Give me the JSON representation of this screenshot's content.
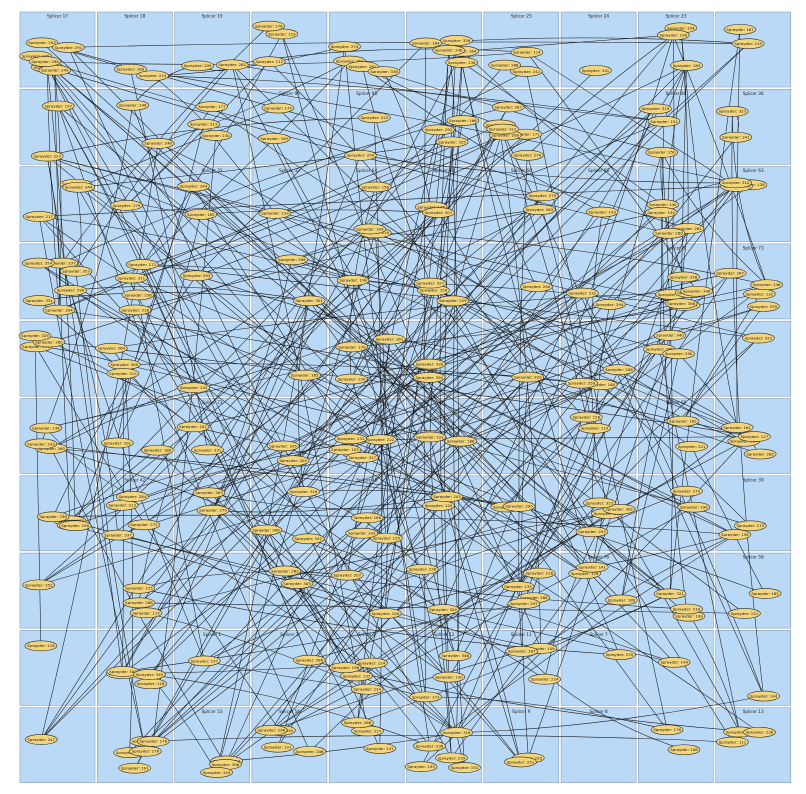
{
  "clusters": [
    {
      "label": "Splicer 17"
    },
    {
      "label": "Splicer 18"
    },
    {
      "label": "Splicer 19"
    },
    {
      "label": ""
    },
    {
      "label": ""
    },
    {
      "label": ""
    },
    {
      "label": "Splicer 25"
    },
    {
      "label": "Splicer 24"
    },
    {
      "label": "Splicer 23"
    },
    {
      "label": ""
    },
    {
      "label": ""
    },
    {
      "label": ""
    },
    {
      "label": ""
    },
    {
      "label": "Splicer 96"
    },
    {
      "label": "Splicer 95"
    },
    {
      "label": ""
    },
    {
      "label": ""
    },
    {
      "label": ""
    },
    {
      "label": "Splicer 88"
    },
    {
      "label": "Splicer 36"
    },
    {
      "label": ""
    },
    {
      "label": ""
    },
    {
      "label": "Splicer 31"
    },
    {
      "label": "Splicer 32"
    },
    {
      "label": "Splicer 64"
    },
    {
      "label": "Splicer 65"
    },
    {
      "label": "Splicer 66"
    },
    {
      "label": "Splicer 68"
    },
    {
      "label": ""
    },
    {
      "label": "Splicer 63"
    },
    {
      "label": ""
    },
    {
      "label": ""
    },
    {
      "label": ""
    },
    {
      "label": ""
    },
    {
      "label": ""
    },
    {
      "label": ""
    },
    {
      "label": ""
    },
    {
      "label": ""
    },
    {
      "label": "Splicer 8"
    },
    {
      "label": "Splicer 73"
    },
    {
      "label": ""
    },
    {
      "label": ""
    },
    {
      "label": ""
    },
    {
      "label": ""
    },
    {
      "label": ""
    },
    {
      "label": ""
    },
    {
      "label": ""
    },
    {
      "label": ""
    },
    {
      "label": ""
    },
    {
      "label": ""
    },
    {
      "label": ""
    },
    {
      "label": ""
    },
    {
      "label": "Splicer 73"
    },
    {
      "label": ""
    },
    {
      "label": ""
    },
    {
      "label": ""
    },
    {
      "label": ""
    },
    {
      "label": ""
    },
    {
      "label": "Splicer 69"
    },
    {
      "label": ""
    },
    {
      "label": ""
    },
    {
      "label": "Splicer 42"
    },
    {
      "label": ""
    },
    {
      "label": ""
    },
    {
      "label": "Splicer 45"
    },
    {
      "label": ""
    },
    {
      "label": ""
    },
    {
      "label": ""
    },
    {
      "label": ""
    },
    {
      "label": "Splicer 39"
    },
    {
      "label": ""
    },
    {
      "label": ""
    },
    {
      "label": ""
    },
    {
      "label": ""
    },
    {
      "label": ""
    },
    {
      "label": ""
    },
    {
      "label": ""
    },
    {
      "label": "Splicer 76"
    },
    {
      "label": ""
    },
    {
      "label": "Splicer 58"
    },
    {
      "label": ""
    },
    {
      "label": ""
    },
    {
      "label": "Splicer 1"
    },
    {
      "label": "Splicer 2"
    },
    {
      "label": "Splicer 3"
    },
    {
      "label": "Splicer 12"
    },
    {
      "label": "Splicer 11"
    },
    {
      "label": "Splicer 7"
    },
    {
      "label": ""
    },
    {
      "label": ""
    },
    {
      "label": ""
    },
    {
      "label": ""
    },
    {
      "label": "Splicer 53"
    },
    {
      "label": "Splicer 54"
    },
    {
      "label": ""
    },
    {
      "label": ""
    },
    {
      "label": "Splicer 9"
    },
    {
      "label": "Splicer 8"
    },
    {
      "label": ""
    },
    {
      "label": "Splicer 13"
    }
  ],
  "nodes": [
    {
      "label": "Sprayder: 107"
    },
    {
      "label": "Sprayder: 108"
    },
    {
      "label": "Sprayder: 109"
    },
    {
      "label": "Sprayder: 110"
    },
    {
      "label": "Sprayder: 111"
    },
    {
      "label": "Sprayder: 112"
    },
    {
      "label": "Sprayder: 113"
    },
    {
      "label": "Sprayder: 114"
    },
    {
      "label": "Sprayder: 115"
    },
    {
      "label": "Sprayder: 116"
    },
    {
      "label": "Sprayder: 117"
    },
    {
      "label": "Sprayder: 118"
    },
    {
      "label": "Sprayder: 119"
    },
    {
      "label": "Sprayder: 120"
    },
    {
      "label": "Sprayder: 121"
    },
    {
      "label": "Sprayder: 122"
    },
    {
      "label": "Sprayder: 123"
    },
    {
      "label": "Sprayder: 124"
    },
    {
      "label": "Sprayder: 125"
    },
    {
      "label": "Sprayder: 126"
    },
    {
      "label": "Sprayder: 127"
    },
    {
      "label": "Sprayder: 128"
    },
    {
      "label": "Sprayder: 129"
    },
    {
      "label": "Sprayder: 130"
    },
    {
      "label": "Sprayder: 131"
    },
    {
      "label": "Sprayder: 132"
    },
    {
      "label": "Sprayder: 133"
    },
    {
      "label": "Sprayder: 134"
    },
    {
      "label": "Sprayder: 135"
    },
    {
      "label": "Sprayder: 136"
    },
    {
      "label": "Sprayder: 137"
    },
    {
      "label": "Sprayder: 138"
    },
    {
      "label": "Sprayder: 139"
    },
    {
      "label": "Sprayder: 140"
    },
    {
      "label": "Sprayder: 141"
    },
    {
      "label": "Sprayder: 142"
    },
    {
      "label": "Sprayder: 143"
    },
    {
      "label": "Sprayder: 144"
    },
    {
      "label": "Sprayder: 145"
    },
    {
      "label": "Sprayder: 146"
    },
    {
      "label": "Sprayder: 147"
    },
    {
      "label": "Sprayder: 148"
    },
    {
      "label": "Sprayder: 149"
    },
    {
      "label": "Sprayder: 150"
    },
    {
      "label": "Sprayder: 151"
    },
    {
      "label": "Sprayder: 152"
    },
    {
      "label": "Sprayder: 153"
    },
    {
      "label": "Sprayder: 154"
    },
    {
      "label": "Sprayder: 155"
    },
    {
      "label": "Sprayder: 156"
    },
    {
      "label": "Sprayder: 157"
    },
    {
      "label": "Sprayder: 158"
    },
    {
      "label": "Sprayder: 159"
    },
    {
      "label": "Sprayder: 160"
    },
    {
      "label": "Sprayder: 161"
    },
    {
      "label": "Sprayder: 162"
    },
    {
      "label": "Sprayder: 163"
    },
    {
      "label": "Sprayder: 164"
    },
    {
      "label": "Sprayder: 165"
    },
    {
      "label": "Sprayder: 166"
    },
    {
      "label": "Sprayder: 167"
    },
    {
      "label": "Sprayder: 168"
    },
    {
      "label": "Sprayder: 169"
    },
    {
      "label": "Sprayder: 170"
    },
    {
      "label": "Sprayder: 171"
    },
    {
      "label": "Sprayder: 172"
    },
    {
      "label": "Sprayder: 173"
    },
    {
      "label": "Sprayder: 174"
    },
    {
      "label": "Sprayder: 175"
    },
    {
      "label": "Sprayder: 176"
    },
    {
      "label": "Sprayder: 177"
    },
    {
      "label": "Sprayder: 178"
    },
    {
      "label": "Sprayder: 179"
    },
    {
      "label": "Sprayder: 180"
    },
    {
      "label": "Sprayder: 181"
    },
    {
      "label": "Sprayder: 182"
    },
    {
      "label": "Sprayder: 183"
    },
    {
      "label": "Sprayder: 184"
    },
    {
      "label": "Sprayder: 185"
    },
    {
      "label": "Sprayder: 186"
    },
    {
      "label": "Sprayder: 187"
    },
    {
      "label": "Sprayder: 188"
    },
    {
      "label": "Sprayder: 189"
    },
    {
      "label": "Sprayder: 190"
    },
    {
      "label": "Sprayder: 191"
    },
    {
      "label": "Sprayder: 192"
    },
    {
      "label": "Sprayder: 193"
    },
    {
      "label": "Sprayder: 194"
    },
    {
      "label": "Sprayder: 195"
    },
    {
      "label": "Sprayder: 196"
    },
    {
      "label": "Sprayder: 197"
    },
    {
      "label": "Sprayder: 198"
    },
    {
      "label": "Sprayder: 199"
    },
    {
      "label": "Sprayder: 200"
    },
    {
      "label": "Sprayder: 201"
    },
    {
      "label": "Sprayder: 202"
    },
    {
      "label": "Sprayder: 203"
    },
    {
      "label": "Sprayder: 204"
    },
    {
      "label": "Sprayder: 205"
    },
    {
      "label": "Sprayder: 206"
    },
    {
      "label": "Sprayder: 207"
    },
    {
      "label": "Sprayder: 208"
    },
    {
      "label": "Sprayder: 209"
    },
    {
      "label": "Sprayder: 210"
    },
    {
      "label": "Sprayder: 211"
    },
    {
      "label": "Sprayder: 212"
    },
    {
      "label": "Sprayder: 213"
    },
    {
      "label": "Sprayder: 214"
    },
    {
      "label": "Sprayder: 215"
    },
    {
      "label": "Sprayder: 216"
    },
    {
      "label": "Sprayder: 217"
    },
    {
      "label": "Sprayder: 218"
    },
    {
      "label": "Sprayder: 219"
    },
    {
      "label": "Sprayder: 220"
    },
    {
      "label": "Sprayder: 221"
    },
    {
      "label": "Sprayder: 222"
    },
    {
      "label": "Sprayder: 223"
    },
    {
      "label": "Sprayder: 224"
    },
    {
      "label": "Sprayder: 225"
    },
    {
      "label": "Sprayder: 226"
    },
    {
      "label": "Sprayder: 227"
    },
    {
      "label": "Sprayder: 228"
    },
    {
      "label": "Sprayder: 229"
    },
    {
      "label": "Sprayder: 230"
    },
    {
      "label": "Sprayder: 231"
    },
    {
      "label": "Sprayder: 232"
    },
    {
      "label": "Sprayder: 233"
    },
    {
      "label": "Sprayder: 234"
    },
    {
      "label": "Sprayder: 235"
    },
    {
      "label": "Sprayder: 236"
    },
    {
      "label": "Sprayder: 237"
    },
    {
      "label": "Sprayder: 238"
    },
    {
      "label": "Sprayder: 239"
    },
    {
      "label": "Sprayder: 240"
    },
    {
      "label": "Sprayder: 241"
    },
    {
      "label": "Sprayder: 242"
    },
    {
      "label": "Sprayder: 243"
    },
    {
      "label": "Sprayder: 244"
    },
    {
      "label": "Sprayder: 245"
    },
    {
      "label": "Sprayder: 246"
    },
    {
      "label": "Sprayder: 247"
    },
    {
      "label": "Sprayder: 248"
    },
    {
      "label": "Sprayder: 249"
    },
    {
      "label": "Sprayder: 250"
    },
    {
      "label": "Sprayder: 251"
    },
    {
      "label": "Sprayder: 252"
    },
    {
      "label": "Sprayder: 253"
    },
    {
      "label": "Sprayder: 254"
    },
    {
      "label": "Sprayder: 255"
    },
    {
      "label": "Sprayder: 256"
    },
    {
      "label": "Sprayder: 257"
    },
    {
      "label": "Sprayder: 258"
    },
    {
      "label": "Sprayder: 259"
    },
    {
      "label": "Sprayder: 260"
    },
    {
      "label": "Sprayder: 261"
    },
    {
      "label": "Sprayder: 262"
    },
    {
      "label": "Sprayder: 263"
    },
    {
      "label": "Sprayder: 264"
    },
    {
      "label": "Sprayder: 265"
    },
    {
      "label": "Sprayder: 266"
    },
    {
      "label": "Sprayder: 267"
    },
    {
      "label": "Sprayder: 268"
    },
    {
      "label": "Sprayder: 269"
    },
    {
      "label": "Sprayder: 270"
    },
    {
      "label": "Sprayder: 271"
    },
    {
      "label": "Sprayder: 272"
    },
    {
      "label": "Sprayder: 273"
    },
    {
      "label": "Sprayder: 274"
    },
    {
      "label": "Sprayder: 275"
    },
    {
      "label": "Sprayder: 276"
    },
    {
      "label": "Sprayder: 277"
    },
    {
      "label": "Sprayder: 278"
    },
    {
      "label": "Sprayder: 279"
    },
    {
      "label": "Sprayder: 280"
    },
    {
      "label": "Sprayder: 281"
    },
    {
      "label": "Sprayder: 282"
    },
    {
      "label": "Sprayder: 283"
    },
    {
      "label": "Sprayder: 284"
    },
    {
      "label": "Sprayder: 285"
    },
    {
      "label": "Sprayder: 286"
    },
    {
      "label": "Sprayder: 287"
    },
    {
      "label": "Sprayder: 288"
    },
    {
      "label": "Sprayder: 289"
    },
    {
      "label": "Sprayder: 290"
    },
    {
      "label": "Sprayder: 291"
    },
    {
      "label": "Sprayder: 292"
    },
    {
      "label": "Sprayder: 293"
    },
    {
      "label": "Sprayder: 294"
    },
    {
      "label": "Sprayder: 295"
    },
    {
      "label": "Sprayder: 296"
    },
    {
      "label": "Sprayder: 297"
    },
    {
      "label": "Sprayder: 298"
    },
    {
      "label": "Sprayder: 299"
    },
    {
      "label": "Sprayder: 300"
    },
    {
      "label": "Sprayder: 301"
    },
    {
      "label": "Sprayder: 302"
    },
    {
      "label": "Sprayder: 303"
    },
    {
      "label": "Sprayder: 304"
    },
    {
      "label": "Sprayder: 305"
    },
    {
      "label": "Sprayder: 306"
    },
    {
      "label": "Sprayder: 307"
    },
    {
      "label": "Sprayder: 308"
    },
    {
      "label": "Sprayder: 309"
    },
    {
      "label": "Sprayder: 310"
    },
    {
      "label": "Sprayder: 311"
    },
    {
      "label": "Sprayder: 312"
    },
    {
      "label": "Sprayder: 313"
    },
    {
      "label": "Sprayder: 314"
    },
    {
      "label": "Sprayder: 315"
    },
    {
      "label": "Sprayder: 316"
    },
    {
      "label": "Sprayder: 317"
    },
    {
      "label": "Sprayder: 318"
    },
    {
      "label": "Sprayder: 319"
    },
    {
      "label": "Sprayder: 320"
    },
    {
      "label": "Sprayder: 321"
    },
    {
      "label": "Sprayder: 322"
    },
    {
      "label": "Sprayder: 323"
    },
    {
      "label": "Sprayder: 324"
    },
    {
      "label": "Sprayder: 325"
    },
    {
      "label": "Sprayder: 326"
    },
    {
      "label": "Sprayder: 327"
    },
    {
      "label": "Sprayder: 328"
    },
    {
      "label": "Sprayder: 329"
    },
    {
      "label": "Sprayder: 330"
    },
    {
      "label": "Sprayder: 331"
    },
    {
      "label": "Sprayder: 332"
    },
    {
      "label": "Sprayder: 333"
    },
    {
      "label": "Sprayder: 334"
    },
    {
      "label": "Sprayder: 335"
    },
    {
      "label": "Sprayder: 336"
    },
    {
      "label": "Sprayder: 337"
    },
    {
      "label": "Sprayder: 338"
    },
    {
      "label": "Sprayder: 339"
    },
    {
      "label": "Sprayder: 340"
    },
    {
      "label": "Sprayder: 341"
    },
    {
      "label": "Sprayder: 342"
    },
    {
      "label": "Sprayder: 343"
    },
    {
      "label": "Sprayder: 344"
    },
    {
      "label": "Sprayder: 345"
    },
    {
      "label": "Sprayder: 346"
    },
    {
      "label": "Sprayder: 347"
    },
    {
      "label": "Sprayder: 348"
    },
    {
      "label": "Sprayder: 349"
    },
    {
      "label": "Sprayder: 350"
    },
    {
      "label": "Sprayder: 351"
    },
    {
      "label": "Sprayder: 352"
    },
    {
      "label": "Sprayder: 353"
    },
    {
      "label": "Sprayder: 354"
    },
    {
      "label": "Sprayder: 355"
    },
    {
      "label": "Sprayder: 356"
    }
  ],
  "colors": {
    "cluster_fill": "#bad9f7",
    "node_fill": "#f3d57c",
    "edge": "#1a1a1a"
  }
}
